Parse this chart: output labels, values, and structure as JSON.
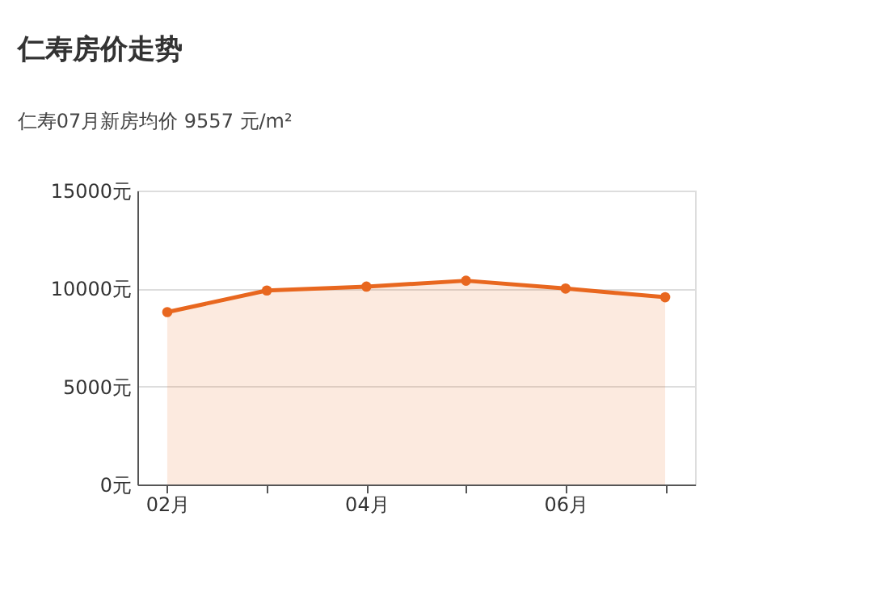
{
  "chart_data": {
    "type": "area",
    "title": "仁寿房价走势",
    "subtitle": "仁寿07月新房均价 9557 元/m²",
    "categories": [
      "02月",
      null,
      "04月",
      null,
      "06月",
      null
    ],
    "series": [
      {
        "color": "#e8671f",
        "values": [
          8800,
          9900,
          10100,
          10400,
          10000,
          9557
        ]
      }
    ],
    "ylim": [
      0,
      15000
    ],
    "yticks": [
      {
        "value": 0,
        "label": "0元"
      },
      {
        "value": 5000,
        "label": "5000元"
      },
      {
        "value": 10000,
        "label": "10000元"
      },
      {
        "value": 15000,
        "label": "15000元"
      }
    ],
    "grid": "y",
    "marker": "circle",
    "line_style": "solid"
  }
}
